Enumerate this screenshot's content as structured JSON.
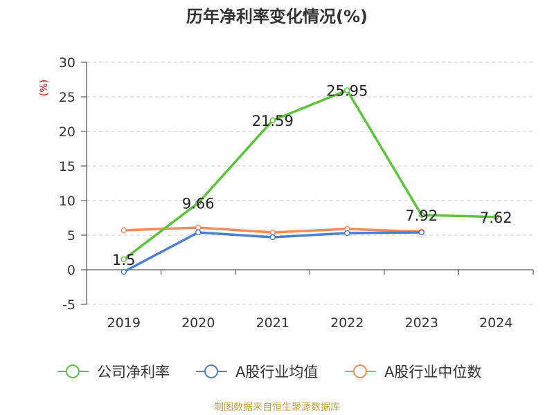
{
  "chart_data": {
    "type": "line",
    "title": "历年净利率变化情况(%)",
    "ylabel": "(%)",
    "xlabel": "",
    "categories": [
      "2019",
      "2020",
      "2021",
      "2022",
      "2023",
      "2024"
    ],
    "ylim": [
      -5,
      30
    ],
    "yticks": [
      -5,
      0,
      5,
      10,
      15,
      20,
      25,
      30
    ],
    "grid": true,
    "legend_position": "bottom",
    "series": [
      {
        "name": "公司净利率",
        "color": "#5cc43a",
        "values": [
          1.5,
          9.66,
          21.59,
          25.95,
          7.92,
          7.62
        ],
        "labels": [
          "1.5",
          "9.66",
          "21.59",
          "25.95",
          "7.92",
          "7.62"
        ],
        "show_labels": true
      },
      {
        "name": "A股行业均值",
        "color": "#4a7fd4",
        "values": [
          -0.3,
          5.4,
          4.7,
          5.3,
          5.4,
          null
        ],
        "show_labels": false
      },
      {
        "name": "A股行业中位数",
        "color": "#f08c5e",
        "values": [
          5.7,
          6.1,
          5.4,
          5.9,
          5.5,
          null
        ],
        "show_labels": false
      }
    ],
    "source_note": "制图数据来自恒生聚源数据库"
  }
}
